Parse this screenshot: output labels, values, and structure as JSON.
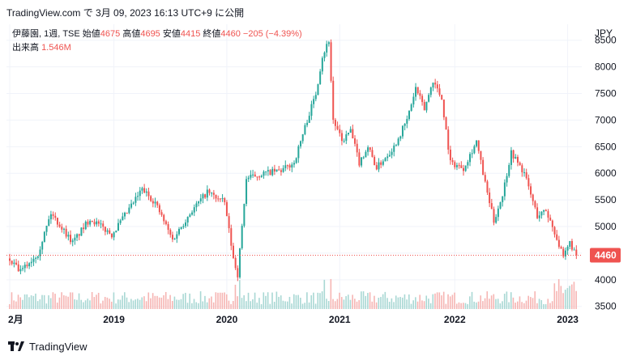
{
  "header": {
    "text": "TradingView.com で 3月 09, 2023 16:13 UTC+9 に公開"
  },
  "footer": {
    "brand": "TradingView"
  },
  "colors": {
    "up": "#26a69a",
    "down": "#ef5350",
    "volume_up": "#a9d8d4",
    "volume_down": "#f6b5b3",
    "text": "#131722",
    "grid": "#f0f3fa"
  },
  "chart_data": {
    "type": "candlestick",
    "symbol": "伊藤園",
    "interval": "1週",
    "exchange": "TSE",
    "legend": {
      "open_label": "始値",
      "open": "4675",
      "high_label": "高値",
      "high": "4695",
      "low_label": "安値",
      "low": "4415",
      "close_label": "終値",
      "close": "4460",
      "change": "−205 (−4.39%)",
      "volume_label": "出来高",
      "volume": "1.546M"
    },
    "currency": "JPY",
    "last_price_label": "4460",
    "last_price": 4460,
    "y_ticks": [
      3500,
      4000,
      4500,
      5000,
      5500,
      6000,
      6500,
      7000,
      7500,
      8000,
      8500
    ],
    "y_tick_labels": [
      "3500",
      "4000",
      "4500",
      "5000",
      "5500",
      "6000",
      "6500",
      "7000",
      "7500",
      "8000",
      "8500"
    ],
    "ylim": [
      3450,
      8800
    ],
    "x_ticks": [
      {
        "label": "2月",
        "t": 0
      },
      {
        "label": "2019",
        "t": 48
      },
      {
        "label": "2020",
        "t": 100
      },
      {
        "label": "2021",
        "t": 152
      },
      {
        "label": "2022",
        "t": 205
      },
      {
        "label": "2023",
        "t": 257
      }
    ],
    "n_weeks": 262,
    "price_path": [
      [
        0,
        4400
      ],
      [
        6,
        4150
      ],
      [
        14,
        4500
      ],
      [
        20,
        5250
      ],
      [
        30,
        4700
      ],
      [
        38,
        5150
      ],
      [
        48,
        4850
      ],
      [
        54,
        5200
      ],
      [
        62,
        5700
      ],
      [
        68,
        5450
      ],
      [
        76,
        4750
      ],
      [
        84,
        5250
      ],
      [
        92,
        5650
      ],
      [
        100,
        5450
      ],
      [
        104,
        4400
      ],
      [
        106,
        4100
      ],
      [
        110,
        5900
      ],
      [
        118,
        6000
      ],
      [
        126,
        6050
      ],
      [
        132,
        6200
      ],
      [
        138,
        7000
      ],
      [
        142,
        7500
      ],
      [
        145,
        8200
      ],
      [
        148,
        8500
      ],
      [
        150,
        7000
      ],
      [
        154,
        6600
      ],
      [
        158,
        6800
      ],
      [
        162,
        6200
      ],
      [
        166,
        6500
      ],
      [
        170,
        6100
      ],
      [
        178,
        6500
      ],
      [
        184,
        7000
      ],
      [
        188,
        7600
      ],
      [
        192,
        7200
      ],
      [
        196,
        7750
      ],
      [
        200,
        7400
      ],
      [
        204,
        6200
      ],
      [
        210,
        6100
      ],
      [
        216,
        6600
      ],
      [
        220,
        5800
      ],
      [
        224,
        5100
      ],
      [
        228,
        5600
      ],
      [
        232,
        6400
      ],
      [
        238,
        6000
      ],
      [
        244,
        5200
      ],
      [
        248,
        5300
      ],
      [
        252,
        4900
      ],
      [
        256,
        4400
      ],
      [
        259,
        4700
      ],
      [
        262,
        4460
      ]
    ]
  }
}
